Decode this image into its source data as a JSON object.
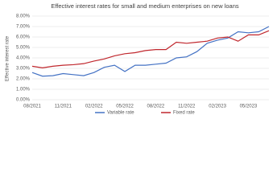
{
  "chart_data": {
    "type": "line",
    "title": "Effective interest rates for small and medium enterprises on new loans",
    "y_label": "Effective interest rate",
    "categories": [
      "08/2021",
      null,
      null,
      "11/2021",
      null,
      null,
      "02/2022",
      null,
      null,
      "05/2022",
      null,
      null,
      "08/2022",
      null,
      null,
      "11/2022",
      null,
      null,
      "02/2023",
      null,
      null,
      "05/2023",
      null,
      null
    ],
    "series": [
      {
        "name": "Variable rate",
        "color": "#4472c4",
        "values": [
          2.6,
          2.25,
          2.3,
          2.5,
          2.4,
          2.3,
          2.6,
          3.1,
          3.3,
          2.7,
          3.3,
          3.3,
          3.4,
          3.5,
          4.0,
          4.1,
          4.6,
          5.4,
          5.7,
          5.9,
          6.5,
          6.4,
          6.5,
          7.0
        ]
      },
      {
        "name": "Fixed rate",
        "color": "#c0272d",
        "values": [
          3.2,
          3.05,
          3.2,
          3.3,
          3.35,
          3.45,
          3.7,
          3.9,
          4.2,
          4.4,
          4.5,
          4.7,
          4.8,
          4.8,
          5.5,
          5.4,
          5.5,
          5.6,
          5.9,
          6.0,
          5.6,
          6.2,
          6.2,
          6.6
        ]
      }
    ],
    "ylim": [
      0,
      8
    ],
    "yticks": [
      {
        "value": 0,
        "label": "0.00%"
      },
      {
        "value": 1,
        "label": "1.00%"
      },
      {
        "value": 2,
        "label": "2.00%"
      },
      {
        "value": 3,
        "label": "3.00%"
      },
      {
        "value": 4,
        "label": "4.00%"
      },
      {
        "value": 5,
        "label": "5.00%"
      },
      {
        "value": 6,
        "label": "6.00%"
      },
      {
        "value": 7,
        "label": "7.00%"
      },
      {
        "value": 8,
        "label": "8.00%"
      }
    ],
    "grid": true
  }
}
